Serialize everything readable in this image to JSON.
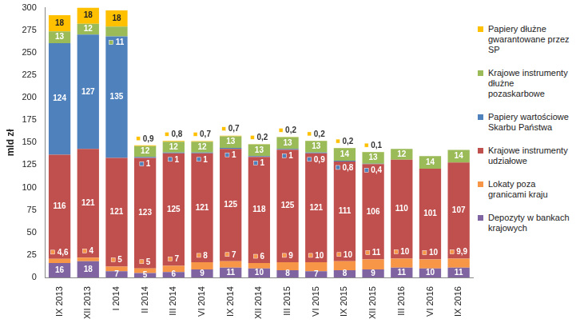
{
  "chart_data": {
    "type": "bar",
    "stacked": true,
    "data_labels": true,
    "grid": false,
    "legend": "right",
    "y_label": "mld zł",
    "ylim": [
      0,
      300
    ],
    "yticks": [
      0,
      25,
      50,
      75,
      100,
      125,
      150,
      175,
      200,
      225,
      250,
      275,
      300
    ],
    "categories": [
      "IX 2013",
      "XII 2013",
      "I 2014",
      "II 2014",
      "III 2014",
      "VI 2014",
      "IX 2014",
      "XII 2014",
      "III 2015",
      "VI 2015",
      "IX 2015",
      "XII 2015",
      "III 2016",
      "VI 2016",
      "IX 2016"
    ],
    "series": [
      {
        "name": "Depozyty w bankach krajowych",
        "color": "#8064a2",
        "values": [
          16,
          18,
          7,
          5,
          6,
          9,
          11,
          10,
          8,
          7,
          8,
          9,
          11,
          10,
          11
        ]
      },
      {
        "name": "Lokaty poza granicami kraju",
        "color": "#f79646",
        "values": [
          4.6,
          4,
          5,
          5,
          7,
          8,
          7,
          6,
          9,
          10,
          10,
          11,
          10,
          10,
          9.9
        ],
        "value_labels": [
          "4,6",
          "4",
          "5",
          "5",
          "7",
          "8",
          "7",
          "6",
          "9",
          "10",
          "10",
          "11",
          "10",
          "10",
          "9,9"
        ]
      },
      {
        "name": "Krajowe instrumenty udziałowe",
        "color": "#c0504d",
        "values": [
          116,
          121,
          121,
          123,
          125,
          121,
          125,
          118,
          125,
          121,
          111,
          106,
          110,
          101,
          107
        ]
      },
      {
        "name": "Papiery wartościowe Skarbu Państwa",
        "color": "#4f81bd",
        "values": [
          124,
          127,
          135,
          1,
          1,
          1,
          1,
          1,
          1,
          0.9,
          0.8,
          0.4,
          null,
          null,
          null
        ],
        "value_labels": [
          "124",
          "127",
          "135",
          "1",
          "1",
          "1",
          "1",
          "1",
          "1",
          "0,9",
          "0,8",
          "0,4",
          null,
          null,
          null
        ]
      },
      {
        "name": "Krajowe instrumenty dłużne pozaskarbowe",
        "color": "#9bbb59",
        "values": [
          13,
          12,
          11,
          12,
          12,
          12,
          13,
          13,
          13,
          13,
          14,
          13,
          12,
          14,
          14
        ]
      },
      {
        "name": "Papiery dłużne gwarantowane przez SP",
        "color": "#ffc000",
        "values": [
          18,
          18,
          18,
          0.9,
          0.8,
          0.7,
          0.7,
          0.2,
          0.2,
          0.2,
          0.2,
          0.1,
          null,
          null,
          null
        ],
        "value_labels": [
          "18",
          "18",
          "18",
          "0,9",
          "0,8",
          "0,7",
          "0,7",
          "0,2",
          "0,2",
          "0,2",
          "0,2",
          "0,1",
          null,
          null,
          null
        ]
      }
    ]
  }
}
